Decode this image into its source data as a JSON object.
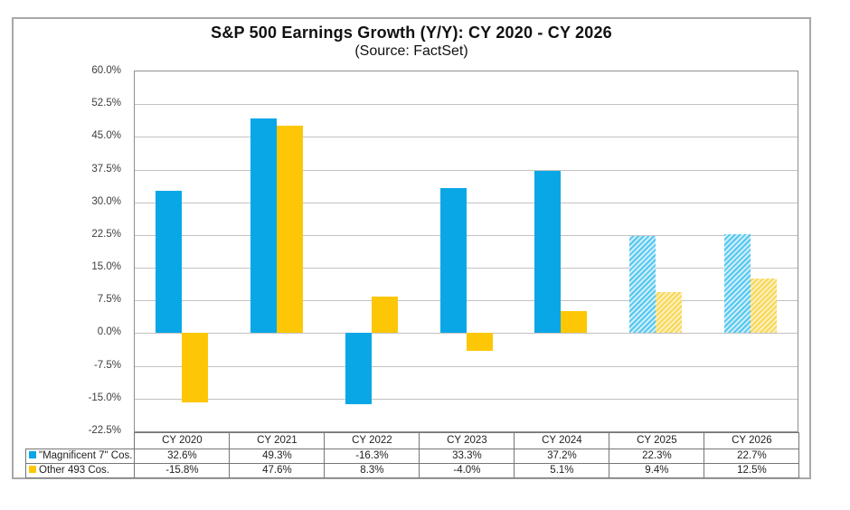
{
  "page": {
    "title": "S&P 500 Earnings Growth (Y/Y): CY 2020 - CY 2026",
    "subtitle": "(Source: FactSet)"
  },
  "chart_data": {
    "type": "bar",
    "title": "S&P 500 Earnings Growth (Y/Y): CY 2020 - CY 2026",
    "subtitle": "(Source: FactSet)",
    "categories": [
      "CY 2020",
      "CY 2021",
      "CY 2022",
      "CY 2023",
      "CY 2024",
      "CY 2025",
      "CY 2026"
    ],
    "series": [
      {
        "name": "\"Magnificent 7\" Cos.",
        "values": [
          32.6,
          49.3,
          -16.3,
          33.3,
          37.2,
          22.3,
          22.7
        ],
        "display_values": [
          "32.6%",
          "49.3%",
          "-16.3%",
          "33.3%",
          "37.2%",
          "22.3%",
          "22.7%"
        ],
        "color": "#09a7e6",
        "hatch_colors": [
          "#55c7ef",
          "#cdeefb"
        ]
      },
      {
        "name": "Other 493 Cos.",
        "values": [
          -15.8,
          47.6,
          8.3,
          -4.0,
          5.1,
          9.4,
          12.5
        ],
        "display_values": [
          "-15.8%",
          "47.6%",
          "8.3%",
          "-4.0%",
          "5.1%",
          "9.4%",
          "12.5%"
        ],
        "color": "#fdc708",
        "hatch_colors": [
          "#f8d755",
          "#fdf0bf"
        ]
      }
    ],
    "estimated_from_index": 5,
    "estimated_categories": [
      "CY 2025",
      "CY 2026"
    ],
    "ylim": [
      -22.5,
      60.0
    ],
    "ytick_step": 7.5,
    "ytick_labels": [
      "60.0%",
      "52.5%",
      "45.0%",
      "37.5%",
      "30.0%",
      "22.5%",
      "15.0%",
      "7.5%",
      "0.0%",
      "-7.5%",
      "-15.0%",
      "-22.5%"
    ],
    "grid": true,
    "legend_position": "bottom-left-table"
  },
  "table": {
    "corner": "",
    "headers": [
      "CY 2020",
      "CY 2021",
      "CY 2022",
      "CY 2023",
      "CY 2024",
      "CY 2025",
      "CY 2026"
    ],
    "rows": [
      {
        "swatch_color": "#09a7e6",
        "label": "\"Magnificent 7\" Cos.",
        "values": [
          "32.6%",
          "49.3%",
          "-16.3%",
          "33.3%",
          "37.2%",
          "22.3%",
          "22.7%"
        ]
      },
      {
        "swatch_color": "#fdc708",
        "label": "Other 493 Cos.",
        "values": [
          "-15.8%",
          "47.6%",
          "8.3%",
          "-4.0%",
          "5.1%",
          "9.4%",
          "12.5%"
        ]
      }
    ]
  },
  "colors": {
    "grid": "#c2c2c2",
    "plot_border": "#8f8f8f",
    "frame_border": "#a8a8a8",
    "table_border": "#757575",
    "text": "#222222"
  }
}
